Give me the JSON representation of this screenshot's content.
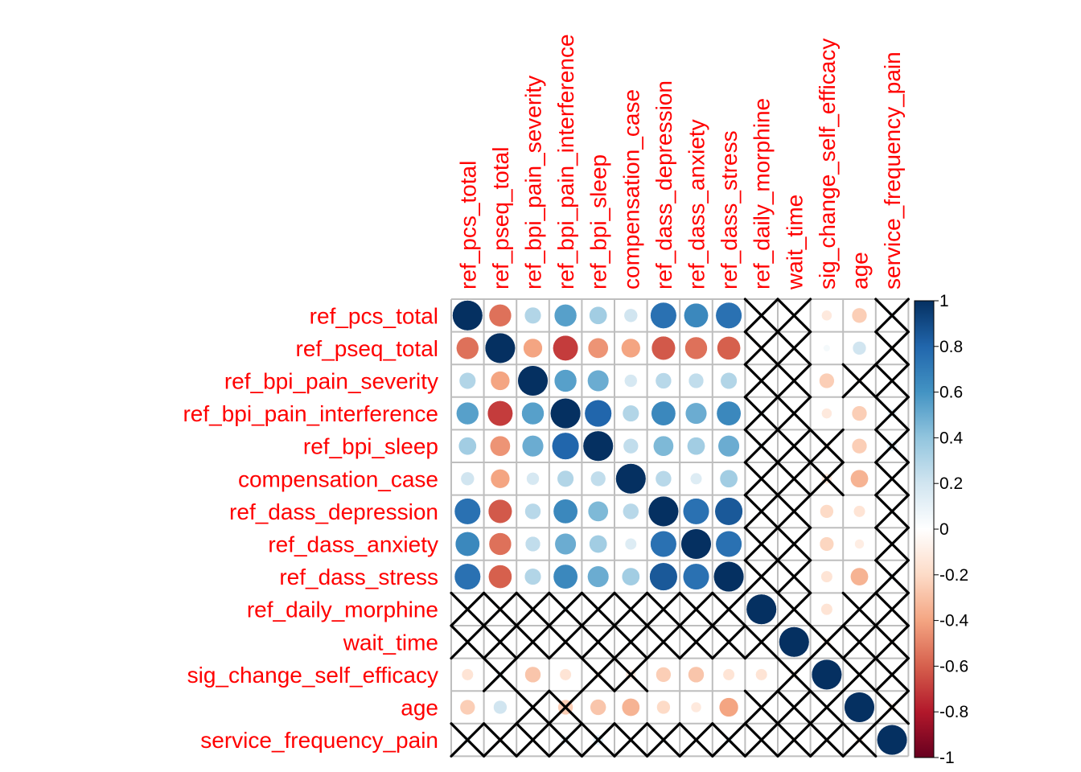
{
  "chart_data": {
    "type": "heatmap",
    "method": "circle",
    "variables": [
      "ref_pcs_total",
      "ref_pseq_total",
      "ref_bpi_pain_severity",
      "ref_bpi_pain_interference",
      "ref_bpi_sleep",
      "compensation_case",
      "ref_dass_depression",
      "ref_dass_anxiety",
      "ref_dass_stress",
      "ref_daily_morphine",
      "wait_time",
      "sig_change_self_efficacy",
      "age",
      "service_frequency_pain"
    ],
    "matrix": [
      [
        1.0,
        -0.55,
        0.3,
        0.55,
        0.35,
        0.2,
        0.75,
        0.65,
        0.75,
        0.05,
        0.02,
        -0.12,
        -0.25,
        0.08
      ],
      [
        -0.55,
        1.0,
        -0.4,
        -0.7,
        -0.45,
        -0.4,
        -0.62,
        -0.55,
        -0.6,
        -0.05,
        0.02,
        0.05,
        0.2,
        -0.05
      ],
      [
        0.3,
        -0.4,
        1.0,
        0.55,
        0.5,
        0.18,
        0.28,
        0.25,
        0.3,
        0.02,
        0.01,
        -0.25,
        -0.05,
        0.01
      ],
      [
        0.55,
        -0.7,
        0.55,
        1.0,
        0.8,
        0.3,
        0.65,
        0.5,
        0.65,
        0.08,
        0.02,
        -0.12,
        -0.25,
        0.1
      ],
      [
        0.35,
        -0.45,
        0.5,
        0.8,
        1.0,
        0.25,
        0.45,
        0.35,
        0.5,
        0.08,
        0.02,
        -0.08,
        -0.25,
        0.12
      ],
      [
        0.2,
        -0.4,
        0.18,
        0.3,
        0.25,
        1.0,
        0.28,
        0.15,
        0.35,
        0.02,
        0.02,
        -0.12,
        -0.35,
        0.02
      ],
      [
        0.75,
        -0.62,
        0.28,
        0.65,
        0.45,
        0.28,
        1.0,
        0.75,
        0.85,
        0.05,
        0.02,
        -0.2,
        -0.15,
        0.05
      ],
      [
        0.65,
        -0.55,
        0.25,
        0.5,
        0.35,
        0.15,
        0.75,
        1.0,
        0.75,
        0.03,
        0.02,
        -0.22,
        -0.1,
        0.03
      ],
      [
        0.75,
        -0.6,
        0.3,
        0.65,
        0.5,
        0.35,
        0.85,
        0.75,
        1.0,
        0.02,
        0.02,
        -0.15,
        -0.35,
        0.08
      ],
      [
        0.02,
        -0.05,
        0.02,
        0.08,
        0.05,
        0.02,
        0.05,
        0.03,
        0.02,
        1.0,
        0.02,
        -0.15,
        -0.02,
        0.01
      ],
      [
        0.02,
        0.02,
        0.01,
        0.02,
        0.02,
        0.05,
        0.02,
        0.02,
        0.02,
        0.02,
        1.0,
        -0.08,
        -0.02,
        -0.05
      ],
      [
        -0.15,
        0.08,
        -0.28,
        -0.15,
        -0.08,
        -0.12,
        -0.25,
        -0.28,
        -0.15,
        -0.15,
        -0.08,
        1.0,
        0.02,
        -0.02
      ],
      [
        -0.25,
        0.2,
        -0.02,
        -0.25,
        -0.28,
        -0.35,
        -0.2,
        -0.12,
        -0.4,
        -0.02,
        -0.02,
        0.02,
        1.0,
        -0.08
      ],
      [
        0.08,
        -0.05,
        0.01,
        0.1,
        0.12,
        0.02,
        0.05,
        0.03,
        0.08,
        0.01,
        -0.05,
        -0.02,
        -0.08,
        1.0
      ]
    ],
    "crossed_out": [
      [
        false,
        false,
        false,
        false,
        false,
        false,
        false,
        false,
        false,
        true,
        true,
        false,
        false,
        true
      ],
      [
        false,
        false,
        false,
        false,
        false,
        false,
        false,
        false,
        false,
        true,
        true,
        false,
        false,
        true
      ],
      [
        false,
        false,
        false,
        false,
        false,
        false,
        false,
        false,
        false,
        true,
        true,
        false,
        true,
        true
      ],
      [
        false,
        false,
        false,
        false,
        false,
        false,
        false,
        false,
        false,
        true,
        true,
        false,
        false,
        true
      ],
      [
        false,
        false,
        false,
        false,
        false,
        false,
        false,
        false,
        false,
        true,
        true,
        true,
        false,
        true
      ],
      [
        false,
        false,
        false,
        false,
        false,
        false,
        false,
        false,
        false,
        true,
        true,
        true,
        false,
        true
      ],
      [
        false,
        false,
        false,
        false,
        false,
        false,
        false,
        false,
        false,
        true,
        true,
        false,
        false,
        true
      ],
      [
        false,
        false,
        false,
        false,
        false,
        false,
        false,
        false,
        false,
        true,
        true,
        false,
        false,
        true
      ],
      [
        false,
        false,
        false,
        false,
        false,
        false,
        false,
        false,
        false,
        true,
        true,
        false,
        false,
        true
      ],
      [
        true,
        true,
        true,
        true,
        true,
        true,
        true,
        true,
        true,
        false,
        true,
        false,
        true,
        true
      ],
      [
        true,
        true,
        true,
        true,
        true,
        true,
        true,
        true,
        true,
        true,
        false,
        true,
        true,
        true
      ],
      [
        false,
        true,
        false,
        false,
        true,
        true,
        false,
        false,
        false,
        false,
        true,
        false,
        true,
        true
      ],
      [
        false,
        false,
        true,
        true,
        false,
        false,
        false,
        false,
        false,
        true,
        true,
        true,
        false,
        true
      ],
      [
        true,
        true,
        true,
        true,
        true,
        true,
        true,
        true,
        true,
        true,
        true,
        true,
        true,
        false
      ]
    ],
    "colorbar": {
      "range": [
        -1,
        1
      ],
      "ticks": [
        1,
        0.8,
        0.6,
        0.4,
        0.2,
        0,
        -0.2,
        -0.4,
        -0.6,
        -0.8,
        -1
      ],
      "tick_labels": [
        "1",
        "0.8",
        "0.6",
        "0.4",
        "0.2",
        "0",
        "-0.2",
        "-0.4",
        "-0.6",
        "-0.8",
        "-1"
      ],
      "colors": [
        "#67001f",
        "#b2182b",
        "#d6604d",
        "#f4a582",
        "#fddbc7",
        "#ffffff",
        "#d1e5f0",
        "#92c5de",
        "#4393c3",
        "#2166ac",
        "#053061"
      ]
    },
    "grid_color": "#bebebe",
    "label_color": "#ff0000",
    "legend_position": "right"
  }
}
